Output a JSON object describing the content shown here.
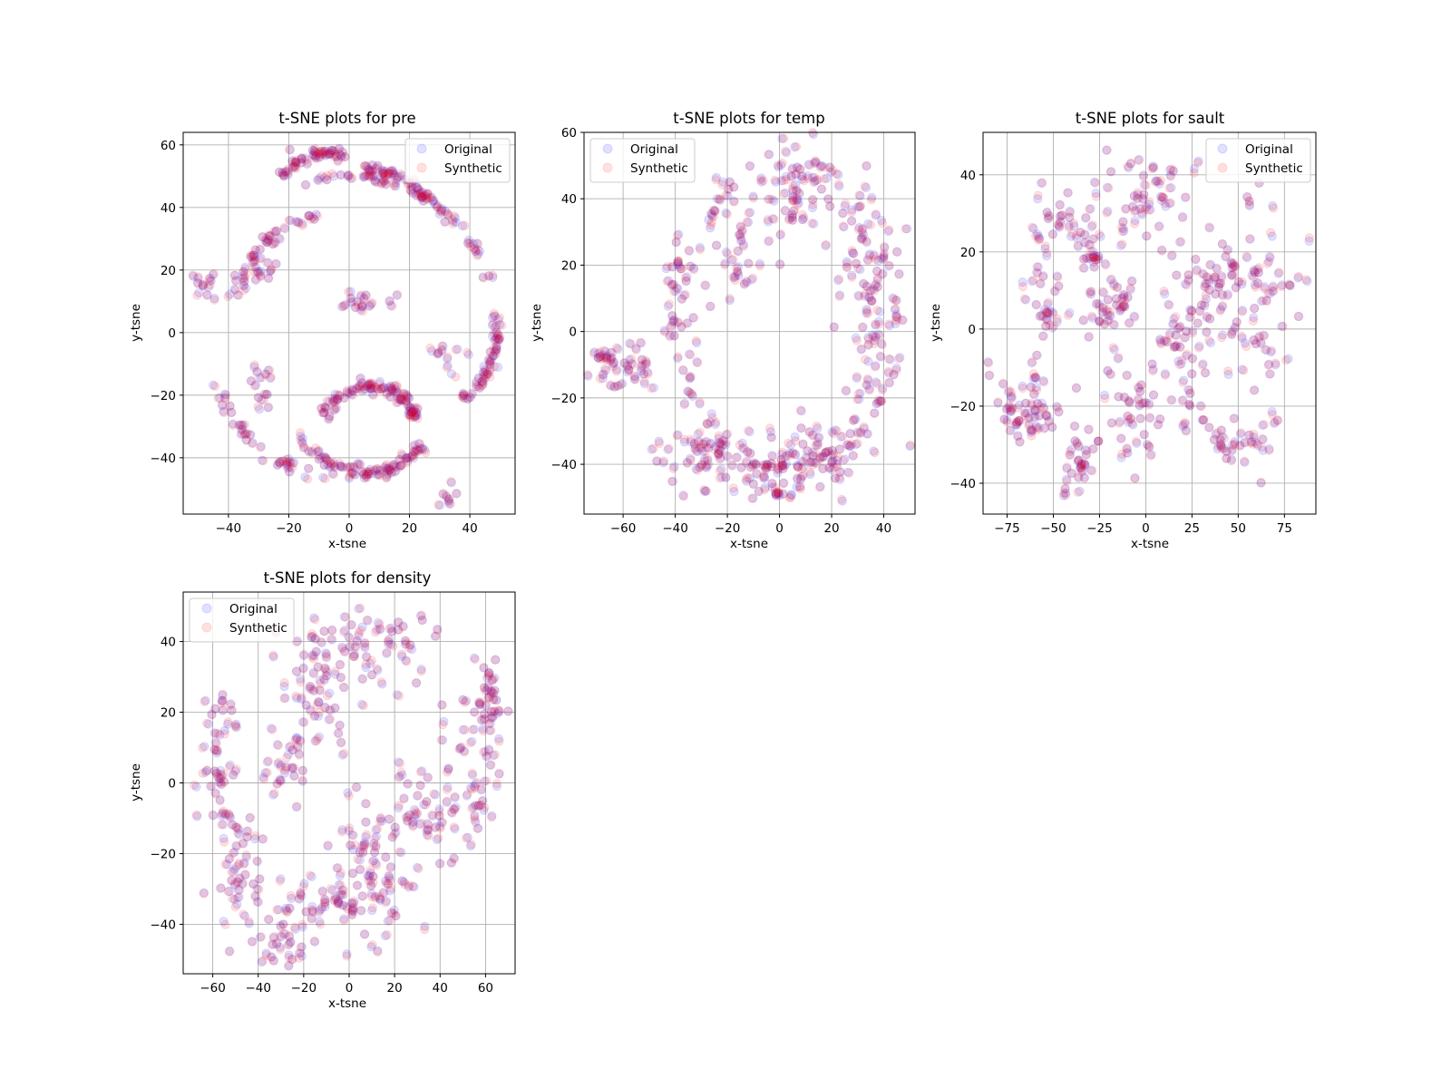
{
  "colors": {
    "original": "#0000ff",
    "synthetic": "#ff0000",
    "grid": "#b0b0b0",
    "point_alpha": 0.12
  },
  "chart_data": [
    {
      "type": "scatter",
      "title": "t-SNE plots for pre",
      "xlabel": "x-tsne",
      "ylabel": "y-tsne",
      "xlim": [
        -55,
        55
      ],
      "ylim": [
        -58,
        64
      ],
      "xticks": [
        -40,
        -20,
        0,
        20,
        40
      ],
      "yticks": [
        -40,
        -20,
        0,
        20,
        40,
        60
      ],
      "grid": true,
      "legend_position": "top-right",
      "series": [
        {
          "name": "Original",
          "color": "#0000ff"
        },
        {
          "name": "Synthetic",
          "color": "#ff0000"
        }
      ],
      "shape": "arcs",
      "clusters": [
        {
          "cx": 0,
          "cy": 0,
          "r": 50,
          "a0": 20,
          "a1": 110,
          "w": 0.8
        },
        {
          "cx": 0,
          "cy": 0,
          "r": 47,
          "a0": 200,
          "a1": 260,
          "w": 1.0
        },
        {
          "cx": -5,
          "cy": 5,
          "r": 33,
          "a0": 100,
          "a1": 170,
          "w": 1.0
        },
        {
          "cx": 5,
          "cy": -20,
          "r": 25,
          "a0": 210,
          "a1": 320,
          "w": 1.0
        },
        {
          "cx": 8,
          "cy": 30,
          "r": 22,
          "a0": 30,
          "a1": 100,
          "w": 1.0
        },
        {
          "cx": 27,
          "cy": -2,
          "r": 22,
          "a0": 300,
          "a1": 380,
          "w": 1.0
        },
        {
          "cx": 7,
          "cy": -33,
          "r": 16,
          "a0": 20,
          "a1": 160,
          "w": 1.0
        },
        {
          "cx": -5,
          "cy": 36,
          "r": 22,
          "a0": 90,
          "a1": 140,
          "w": 0.8
        }
      ],
      "blobs": [
        {
          "x": -47,
          "y": 15,
          "sx": 2,
          "sy": 3,
          "n": 12
        },
        {
          "x": 5,
          "y": 10,
          "sx": 6,
          "sy": 2,
          "n": 18
        },
        {
          "x": 33,
          "y": -51,
          "sx": 1.5,
          "sy": 2,
          "n": 8
        },
        {
          "x": -28,
          "y": 20,
          "sx": 2,
          "sy": 2,
          "n": 12
        },
        {
          "x": -29,
          "y": -18,
          "sx": 2,
          "sy": 4,
          "n": 14
        },
        {
          "x": -8,
          "y": 57,
          "sx": 4,
          "sy": 1,
          "n": 18
        },
        {
          "x": 32,
          "y": -8,
          "sx": 3,
          "sy": 3,
          "n": 10
        },
        {
          "x": -1,
          "y": -43,
          "sx": 4,
          "sy": 2,
          "n": 12
        }
      ]
    },
    {
      "type": "scatter",
      "title": "t-SNE plots for temp",
      "xlabel": "x-tsne",
      "ylabel": "y-tsne",
      "xlim": [
        -75,
        52
      ],
      "ylim": [
        -55,
        60
      ],
      "xticks": [
        -60,
        -40,
        -20,
        0,
        20,
        40
      ],
      "yticks": [
        -40,
        -20,
        0,
        20,
        40,
        60
      ],
      "grid": true,
      "legend_position": "top-left",
      "series": [
        {
          "name": "Original",
          "color": "#0000ff"
        },
        {
          "name": "Synthetic",
          "color": "#ff0000"
        }
      ],
      "shape": "ring",
      "ring": {
        "cx": 2,
        "cy": 2,
        "rx": 40,
        "ry": 46,
        "w": 4
      },
      "blobs": [
        {
          "x": -60,
          "y": -10,
          "sx": 7,
          "sy": 4,
          "n": 45
        },
        {
          "x": -30,
          "y": -38,
          "sx": 8,
          "sy": 5,
          "n": 40
        },
        {
          "x": 0,
          "y": -40,
          "sx": 10,
          "sy": 5,
          "n": 55
        },
        {
          "x": 20,
          "y": -35,
          "sx": 7,
          "sy": 5,
          "n": 35
        },
        {
          "x": -15,
          "y": 25,
          "sx": 5,
          "sy": 10,
          "n": 30
        },
        {
          "x": 5,
          "y": 40,
          "sx": 6,
          "sy": 10,
          "n": 40
        },
        {
          "x": 35,
          "y": 10,
          "sx": 6,
          "sy": 20,
          "n": 60
        },
        {
          "x": -40,
          "y": 15,
          "sx": 3,
          "sy": 8,
          "n": 20
        }
      ]
    },
    {
      "type": "scatter",
      "title": "t-SNE plots for sault",
      "xlabel": "x-tsne",
      "ylabel": "y-tsne",
      "xlim": [
        -88,
        92
      ],
      "ylim": [
        -48,
        51
      ],
      "xticks": [
        -75,
        -50,
        -25,
        0,
        25,
        50,
        75
      ],
      "yticks": [
        -40,
        -20,
        0,
        20,
        40
      ],
      "grid": true,
      "legend_position": "top-right",
      "series": [
        {
          "name": "Original",
          "color": "#0000ff"
        },
        {
          "name": "Synthetic",
          "color": "#ff0000"
        }
      ],
      "shape": "blobs",
      "blobs": [
        {
          "x": -65,
          "y": -20,
          "sx": 10,
          "sy": 4,
          "n": 55
        },
        {
          "x": -55,
          "y": 10,
          "sx": 4,
          "sy": 12,
          "n": 40
        },
        {
          "x": -40,
          "y": 28,
          "sx": 6,
          "sy": 3,
          "n": 18
        },
        {
          "x": -35,
          "y": -35,
          "sx": 5,
          "sy": 5,
          "n": 30
        },
        {
          "x": -20,
          "y": 5,
          "sx": 8,
          "sy": 6,
          "n": 40
        },
        {
          "x": 0,
          "y": 35,
          "sx": 12,
          "sy": 6,
          "n": 50
        },
        {
          "x": -5,
          "y": -20,
          "sx": 8,
          "sy": 8,
          "n": 40
        },
        {
          "x": 20,
          "y": -5,
          "sx": 8,
          "sy": 12,
          "n": 50
        },
        {
          "x": 40,
          "y": 10,
          "sx": 10,
          "sy": 8,
          "n": 50
        },
        {
          "x": 65,
          "y": 5,
          "sx": 8,
          "sy": 14,
          "n": 55
        },
        {
          "x": 45,
          "y": -30,
          "sx": 12,
          "sy": 3,
          "n": 30
        },
        {
          "x": -30,
          "y": 20,
          "sx": 4,
          "sy": 6,
          "n": 20
        }
      ]
    },
    {
      "type": "scatter",
      "title": "t-SNE plots for density",
      "xlabel": "x-tsne",
      "ylabel": "y-tsne",
      "xlim": [
        -73,
        73
      ],
      "ylim": [
        -54,
        54
      ],
      "xticks": [
        -60,
        -40,
        -20,
        0,
        20,
        40,
        60
      ],
      "yticks": [
        -40,
        -20,
        0,
        20,
        40
      ],
      "grid": true,
      "legend_position": "top-left",
      "series": [
        {
          "name": "Original",
          "color": "#0000ff"
        },
        {
          "name": "Synthetic",
          "color": "#ff0000"
        }
      ],
      "shape": "blobs",
      "blobs": [
        {
          "x": -58,
          "y": 5,
          "sx": 5,
          "sy": 12,
          "n": 50
        },
        {
          "x": -48,
          "y": -25,
          "sx": 4,
          "sy": 10,
          "n": 40
        },
        {
          "x": -30,
          "y": -45,
          "sx": 5,
          "sy": 4,
          "n": 25
        },
        {
          "x": -15,
          "y": 25,
          "sx": 8,
          "sy": 12,
          "n": 60
        },
        {
          "x": 10,
          "y": 40,
          "sx": 12,
          "sy": 6,
          "n": 55
        },
        {
          "x": -5,
          "y": -35,
          "sx": 15,
          "sy": 5,
          "n": 60
        },
        {
          "x": 10,
          "y": -22,
          "sx": 10,
          "sy": 8,
          "n": 55
        },
        {
          "x": 35,
          "y": -8,
          "sx": 10,
          "sy": 6,
          "n": 45
        },
        {
          "x": 55,
          "y": 5,
          "sx": 6,
          "sy": 10,
          "n": 45
        },
        {
          "x": 62,
          "y": 25,
          "sx": 3,
          "sy": 6,
          "n": 30
        },
        {
          "x": -30,
          "y": 5,
          "sx": 6,
          "sy": 4,
          "n": 20
        }
      ]
    }
  ]
}
